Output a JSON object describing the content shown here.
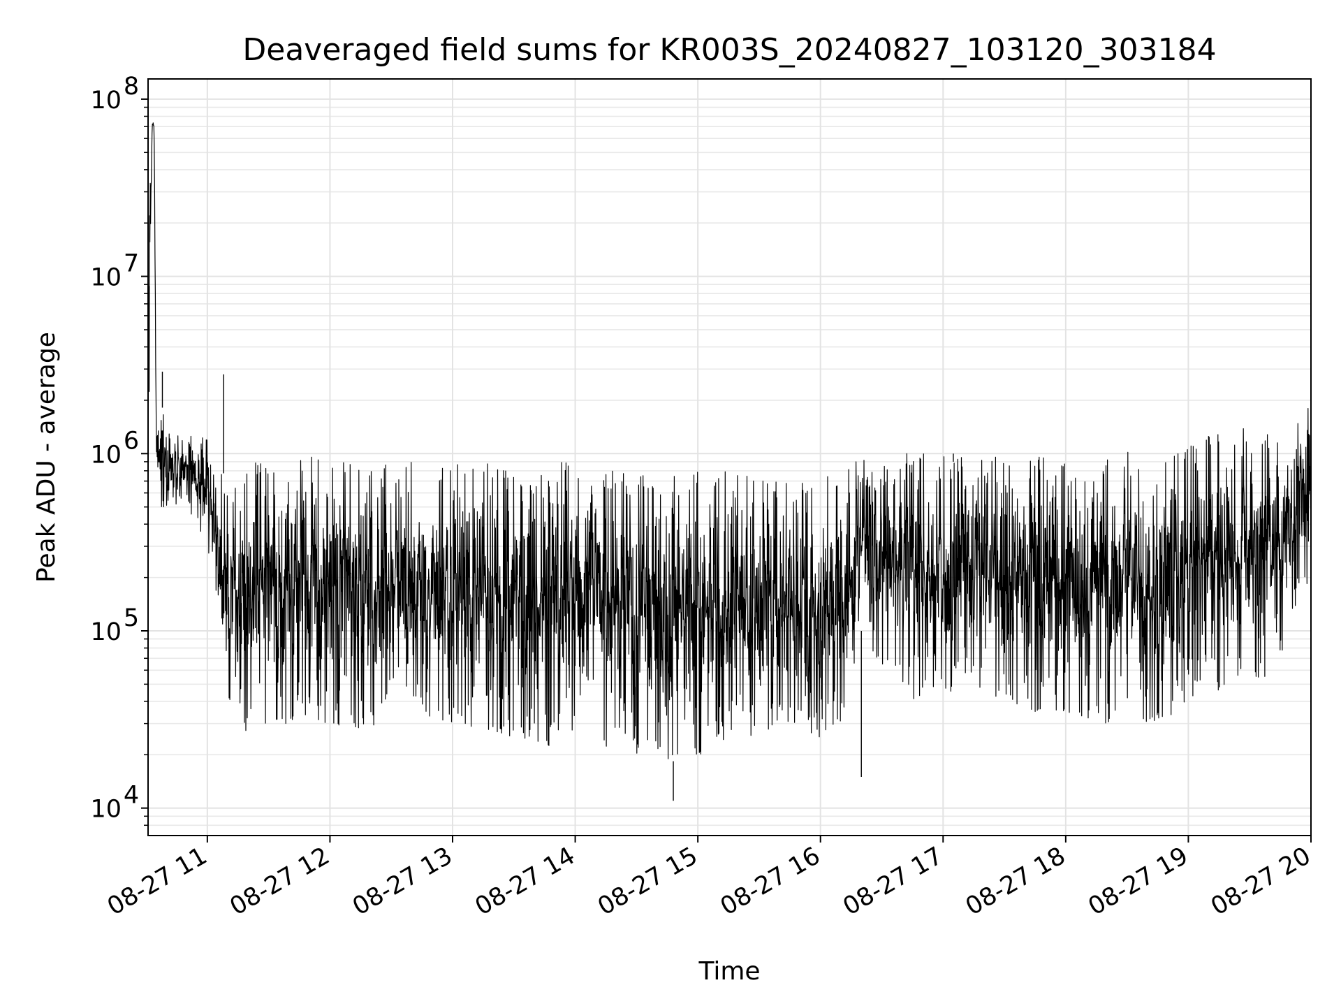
{
  "chart_data": {
    "type": "line",
    "title": "Deaveraged field sums for KR003S_20240827_103120_303184",
    "xlabel": "Time",
    "ylabel": "Peak ADU - average",
    "x_scale": "time",
    "y_scale": "log",
    "xlim": [
      "2024-08-27 10:31",
      "2024-08-27 20:00"
    ],
    "ylim": [
      7000,
      130000000
    ],
    "grid": true,
    "line_color": "#000000",
    "x_ticks": [
      {
        "value": "2024-08-27 11:00",
        "label": "08-27 11"
      },
      {
        "value": "2024-08-27 12:00",
        "label": "08-27 12"
      },
      {
        "value": "2024-08-27 13:00",
        "label": "08-27 13"
      },
      {
        "value": "2024-08-27 14:00",
        "label": "08-27 14"
      },
      {
        "value": "2024-08-27 15:00",
        "label": "08-27 15"
      },
      {
        "value": "2024-08-27 16:00",
        "label": "08-27 16"
      },
      {
        "value": "2024-08-27 17:00",
        "label": "08-27 17"
      },
      {
        "value": "2024-08-27 18:00",
        "label": "08-27 18"
      },
      {
        "value": "2024-08-27 19:00",
        "label": "08-27 19"
      },
      {
        "value": "2024-08-27 20:00",
        "label": "08-27 20"
      }
    ],
    "y_ticks": [
      {
        "value": 10000,
        "base": "10",
        "exp": "4"
      },
      {
        "value": 100000,
        "base": "10",
        "exp": "5"
      },
      {
        "value": 1000000,
        "base": "10",
        "exp": "6"
      },
      {
        "value": 10000000,
        "base": "10",
        "exp": "7"
      },
      {
        "value": 100000000,
        "base": "10",
        "exp": "8"
      }
    ],
    "series": [
      {
        "x": [
          "2024-08-27 10:31",
          "2024-08-27 10:32",
          "2024-08-27 10:33",
          "2024-08-27 10:34",
          "2024-08-27 10:35",
          "2024-08-27 10:37",
          "2024-08-27 10:40",
          "2024-08-27 10:45",
          "2024-08-27 10:50",
          "2024-08-27 10:55",
          "2024-08-27 11:00",
          "2024-08-27 11:05",
          "2024-08-27 11:10",
          "2024-08-27 11:15",
          "2024-08-27 11:20",
          "2024-08-27 11:30",
          "2024-08-27 11:40",
          "2024-08-27 11:50",
          "2024-08-27 12:00",
          "2024-08-27 12:15",
          "2024-08-27 12:30",
          "2024-08-27 12:45",
          "2024-08-27 13:00",
          "2024-08-27 13:15",
          "2024-08-27 13:30",
          "2024-08-27 13:45",
          "2024-08-27 14:00",
          "2024-08-27 14:15",
          "2024-08-27 14:30",
          "2024-08-27 14:45",
          "2024-08-27 15:00",
          "2024-08-27 15:15",
          "2024-08-27 15:30",
          "2024-08-27 15:45",
          "2024-08-27 16:00",
          "2024-08-27 16:10",
          "2024-08-27 16:20",
          "2024-08-27 16:40",
          "2024-08-27 17:00",
          "2024-08-27 17:20",
          "2024-08-27 17:40",
          "2024-08-27 18:00",
          "2024-08-27 18:20",
          "2024-08-27 18:40",
          "2024-08-27 19:00",
          "2024-08-27 19:20",
          "2024-08-27 19:40",
          "2024-08-27 20:00"
        ],
        "lo": [
          2000000,
          2000000,
          60000000,
          60000000,
          400000,
          500000,
          500000,
          500000,
          500000,
          400000,
          300000,
          150000,
          40000,
          25000,
          25000,
          28000,
          30000,
          30000,
          30000,
          28000,
          30000,
          30000,
          30000,
          28000,
          25000,
          22000,
          25000,
          22000,
          20000,
          18000,
          20000,
          22000,
          25000,
          28000,
          25000,
          30000,
          100000,
          40000,
          45000,
          45000,
          35000,
          35000,
          30000,
          30000,
          35000,
          50000,
          50000,
          200000
        ],
        "hi": [
          4000000,
          70000000,
          85000000,
          80000000,
          2000000,
          2000000,
          1500000,
          1400000,
          1300000,
          1300000,
          1200000,
          900000,
          700000,
          900000,
          900000,
          900000,
          1000000,
          1000000,
          950000,
          900000,
          900000,
          900000,
          900000,
          900000,
          950000,
          950000,
          950000,
          850000,
          800000,
          800000,
          850000,
          850000,
          750000,
          700000,
          700000,
          900000,
          1000000,
          1000000,
          1000000,
          1000000,
          1000000,
          1000000,
          1000000,
          1100000,
          1200000,
          1400000,
          1400000,
          2000000
        ]
      }
    ],
    "outliers": [
      {
        "x": "2024-08-27 10:38",
        "y": 2900000
      },
      {
        "x": "2024-08-27 11:08",
        "y": 2800000
      },
      {
        "x": "2024-08-27 14:48",
        "y": 11000
      },
      {
        "x": "2024-08-27 16:20",
        "y": 15000
      },
      {
        "x": "2024-08-27 17:05",
        "y": 900000
      },
      {
        "x": "2024-08-27 20:00",
        "y": 2100000
      }
    ]
  }
}
